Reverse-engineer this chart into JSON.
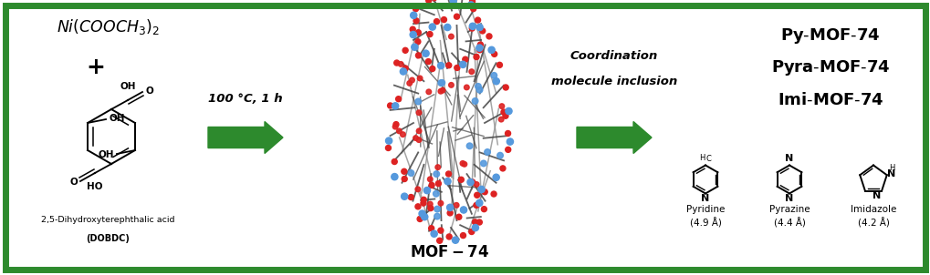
{
  "bg_color": "#ffffff",
  "border_color": "#2d8a2d",
  "border_lw": 5,
  "fig_width": 10.2,
  "fig_height": 3.02,
  "arrow_color": "#2d8a2d",
  "text_color": "#000000",
  "condition": "100 °C, 1 h",
  "acid_label1": "2,5-Dihydroxyterephthalic acid",
  "acid_label2": "(DOBDC)",
  "mof_label": "MOF-74",
  "coord_text1": "Coordination",
  "coord_text2": "molecule inclusion",
  "prod1": "Py-MOF-74",
  "prod2": "Pyra-MOF-74",
  "prod3": "Imi-MOF-74",
  "mol1_name": "Pyridine",
  "mol1_size": "(4.9 Å)",
  "mol2_name": "Pyrazine",
  "mol2_size": "(4.4 Å)",
  "mol3_name": "Imidazole",
  "mol3_size": "(4.2 Å)",
  "red_atom": "#dd2222",
  "blue_atom": "#5599dd",
  "grey_stick": "#888888",
  "dark_stick": "#444444"
}
